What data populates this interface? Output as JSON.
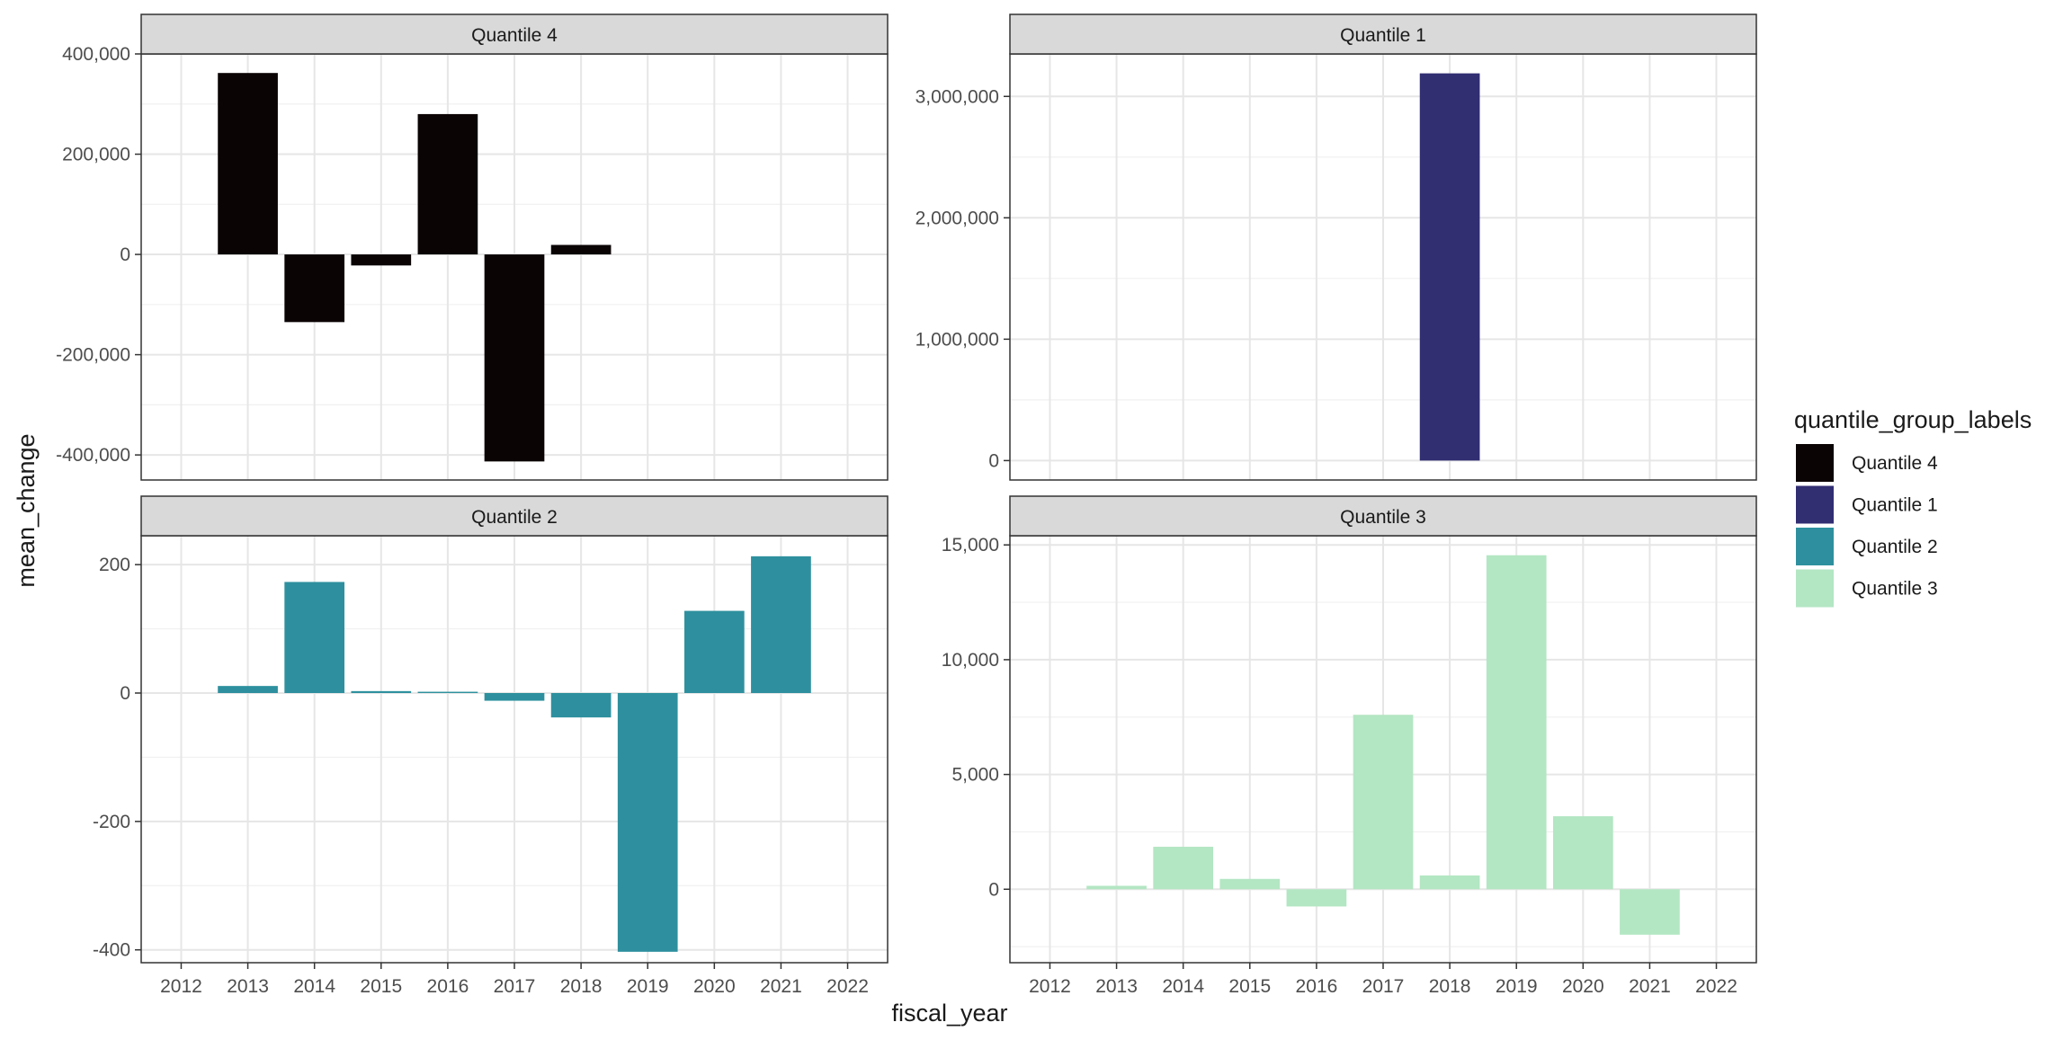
{
  "chart_data": {
    "type": "bar",
    "layout": "facet_wrap",
    "x": [
      2012,
      2013,
      2014,
      2015,
      2016,
      2017,
      2018,
      2019,
      2020,
      2021,
      2022
    ],
    "xlabel": "fiscal_year",
    "ylabel": "mean_change",
    "grid": true,
    "scales": "free_y",
    "legend": {
      "title": "quantile_group_labels",
      "placement": "right",
      "entries": [
        {
          "label": "Quantile 4",
          "color": "#0b0405"
        },
        {
          "label": "Quantile 1",
          "color": "#312e72"
        },
        {
          "label": "Quantile 2",
          "color": "#2e909e"
        },
        {
          "label": "Quantile 3",
          "color": "#b3e6c3"
        }
      ]
    },
    "panels": [
      {
        "title": "Quantile 4",
        "color": "#0b0405",
        "ylim": [
          -450000,
          400000
        ],
        "yticks": [
          -400000,
          -200000,
          0,
          200000,
          400000
        ],
        "ytick_labels": [
          "-400,000",
          "-200,000",
          "0",
          "200,000",
          "400,000"
        ],
        "show_x_axis": false,
        "bars": [
          {
            "x": 2013,
            "y": 362000
          },
          {
            "x": 2014,
            "y": -135000
          },
          {
            "x": 2015,
            "y": -22000
          },
          {
            "x": 2016,
            "y": 280000
          },
          {
            "x": 2017,
            "y": -413000
          },
          {
            "x": 2018,
            "y": 19000
          }
        ]
      },
      {
        "title": "Quantile 1",
        "color": "#312e72",
        "ylim": [
          -160000,
          3350000
        ],
        "yticks": [
          0,
          1000000,
          2000000,
          3000000
        ],
        "ytick_labels": [
          "0",
          "1,000,000",
          "2,000,000",
          "3,000,000"
        ],
        "show_x_axis": false,
        "bars": [
          {
            "x": 2018,
            "y": 3190000
          }
        ]
      },
      {
        "title": "Quantile 2",
        "color": "#2e909e",
        "ylim": [
          -420,
          245
        ],
        "yticks": [
          -400,
          -200,
          0,
          200
        ],
        "ytick_labels": [
          "-400",
          "-200",
          "0",
          "200"
        ],
        "show_x_axis": true,
        "bars": [
          {
            "x": 2013,
            "y": 11
          },
          {
            "x": 2014,
            "y": 173
          },
          {
            "x": 2015,
            "y": 3
          },
          {
            "x": 2016,
            "y": 2
          },
          {
            "x": 2017,
            "y": -12
          },
          {
            "x": 2018,
            "y": -38
          },
          {
            "x": 2019,
            "y": -403
          },
          {
            "x": 2020,
            "y": 128
          },
          {
            "x": 2021,
            "y": 213
          }
        ]
      },
      {
        "title": "Quantile 3",
        "color": "#b3e6c3",
        "ylim": [
          -3200,
          15400
        ],
        "yticks": [
          0,
          5000,
          10000,
          15000
        ],
        "ytick_labels": [
          "0",
          "5,000",
          "10,000",
          "15,000"
        ],
        "show_x_axis": true,
        "bars": [
          {
            "x": 2013,
            "y": 150
          },
          {
            "x": 2014,
            "y": 1850
          },
          {
            "x": 2015,
            "y": 450
          },
          {
            "x": 2016,
            "y": -750
          },
          {
            "x": 2017,
            "y": 7600
          },
          {
            "x": 2018,
            "y": 600
          },
          {
            "x": 2019,
            "y": 14550
          },
          {
            "x": 2020,
            "y": 3180
          },
          {
            "x": 2021,
            "y": -1980
          }
        ]
      }
    ]
  }
}
